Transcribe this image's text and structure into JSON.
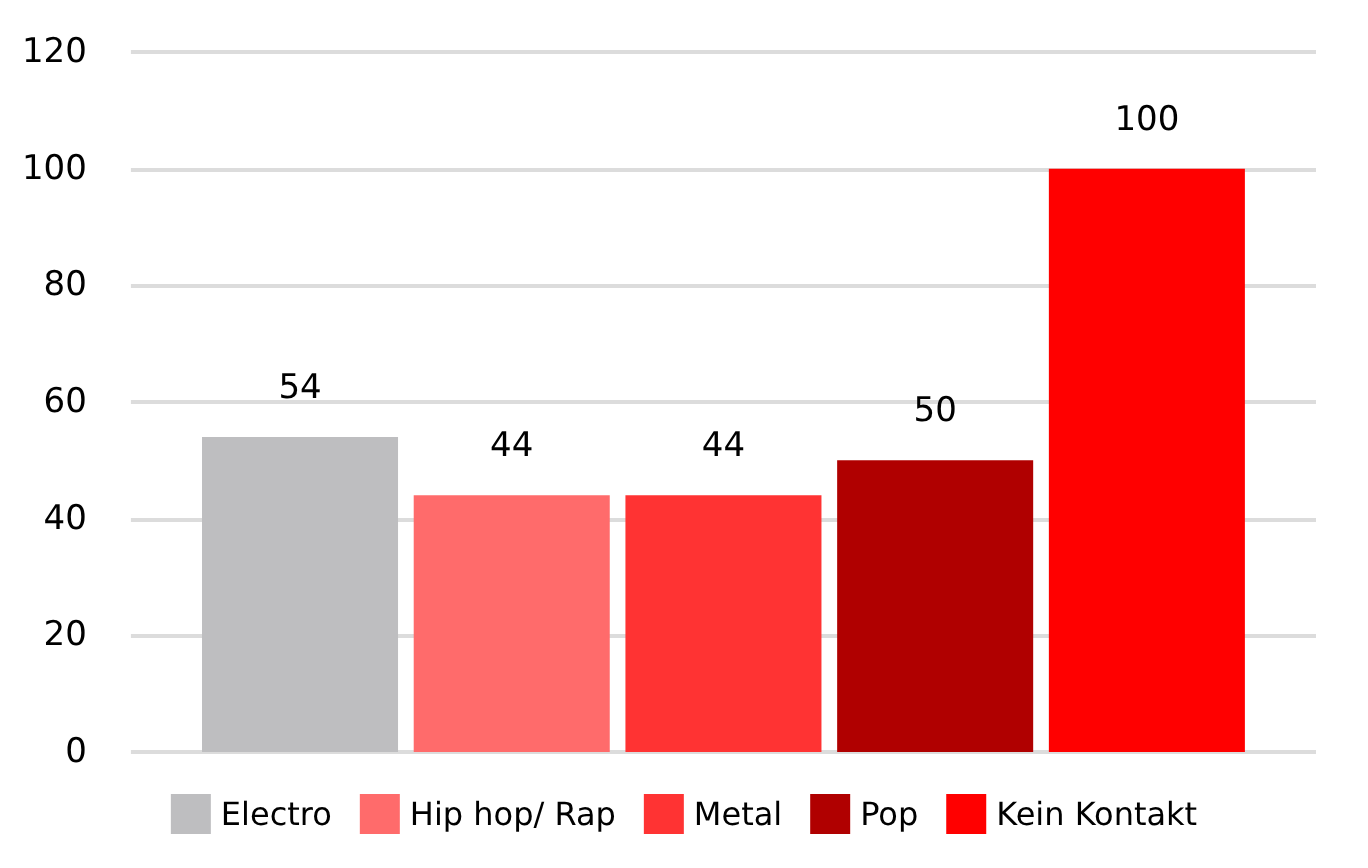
{
  "chart_data": {
    "type": "bar",
    "categories": [
      null
    ],
    "series": [
      {
        "name": "Electro",
        "color": "#bebec0",
        "values": [
          54
        ]
      },
      {
        "name": "Hip hop/ Rap",
        "color": "#ff6b6b",
        "values": [
          44
        ]
      },
      {
        "name": "Metal",
        "color": "#ff3333",
        "values": [
          44
        ]
      },
      {
        "name": "Pop",
        "color": "#b00000",
        "values": [
          50
        ]
      },
      {
        "name": "Kein Kontakt",
        "color": "#ff0000",
        "values": [
          100
        ]
      }
    ],
    "ylim": [
      0,
      120
    ],
    "yticks": [
      0,
      20,
      40,
      60,
      80,
      100,
      120
    ],
    "grid": "y",
    "legend": "bottom",
    "data_labels": true
  }
}
